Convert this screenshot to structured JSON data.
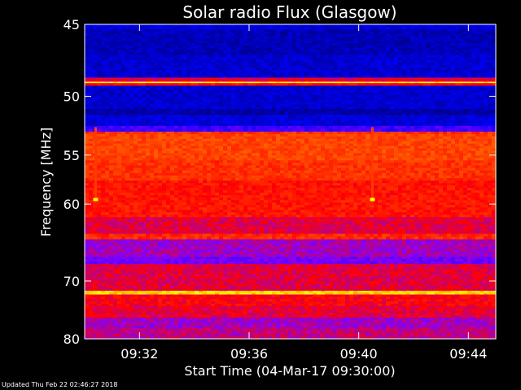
{
  "chart_data": {
    "type": "heatmap",
    "title": "Solar radio Flux (Glasgow)",
    "xlabel": "Start Time (04-Mar-17 09:30:00)",
    "ylabel": "Frequency [MHz]",
    "x_ticks": [
      "09:32",
      "09:36",
      "09:40",
      "09:44"
    ],
    "x_tick_minutes": [
      2,
      6,
      10,
      14
    ],
    "x_range_minutes": [
      0,
      15
    ],
    "y_ticks": [
      "45",
      "50",
      "55",
      "60",
      "70",
      "80"
    ],
    "y_tick_values": [
      45,
      50,
      55,
      60,
      70,
      80
    ],
    "ylim": [
      45,
      80
    ],
    "y_scale": "reciprocal",
    "y_direction": "increasing-downward",
    "colormap": [
      "#000088",
      "#0000ff",
      "#8000ff",
      "#ff0000",
      "#ff6000",
      "#ffff00"
    ],
    "bands": [
      {
        "from": 45.0,
        "to": 45.3,
        "level": 0.15
      },
      {
        "from": 45.3,
        "to": 47.0,
        "level": 0.08
      },
      {
        "from": 47.0,
        "to": 48.6,
        "level": 0.12
      },
      {
        "from": 48.6,
        "to": 48.9,
        "level": 0.55
      },
      {
        "from": 48.9,
        "to": 49.0,
        "level": 1.0
      },
      {
        "from": 49.0,
        "to": 49.2,
        "level": 0.6
      },
      {
        "from": 49.2,
        "to": 51.0,
        "level": 0.12
      },
      {
        "from": 51.0,
        "to": 51.5,
        "level": 0.05
      },
      {
        "from": 51.5,
        "to": 52.4,
        "level": 0.14
      },
      {
        "from": 52.4,
        "to": 52.9,
        "level": 0.3
      },
      {
        "from": 52.9,
        "to": 53.1,
        "level": 0.7
      },
      {
        "from": 53.1,
        "to": 55.5,
        "level": 0.74
      },
      {
        "from": 55.5,
        "to": 57.5,
        "level": 0.7
      },
      {
        "from": 57.5,
        "to": 61.5,
        "level": 0.64
      },
      {
        "from": 61.5,
        "to": 63.5,
        "level": 0.55
      },
      {
        "from": 63.5,
        "to": 64.2,
        "level": 0.68
      },
      {
        "from": 64.2,
        "to": 66.5,
        "level": 0.45
      },
      {
        "from": 66.5,
        "to": 67.5,
        "level": 0.38
      },
      {
        "from": 67.5,
        "to": 71.5,
        "level": 0.55
      },
      {
        "from": 71.5,
        "to": 72.1,
        "level": 0.95
      },
      {
        "from": 72.1,
        "to": 74.0,
        "level": 0.6
      },
      {
        "from": 74.0,
        "to": 76.0,
        "level": 0.56
      },
      {
        "from": 76.0,
        "to": 78.0,
        "level": 0.45
      },
      {
        "from": 78.0,
        "to": 80.0,
        "level": 0.5
      }
    ],
    "features": [
      {
        "type": "burst_spike",
        "time_minutes": 0.4,
        "freq_from": 52.5,
        "freq_to": 59.5,
        "level": 0.9
      },
      {
        "type": "burst_spike",
        "time_minutes": 10.5,
        "freq_from": 52.5,
        "freq_to": 59.5,
        "level": 0.9
      }
    ],
    "footer": "Updated Thu Feb 22 02:46:27 2018"
  }
}
